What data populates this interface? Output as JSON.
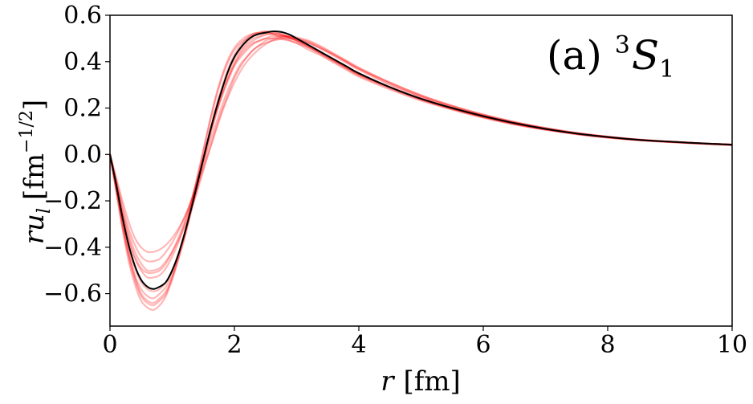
{
  "chart_data": {
    "type": "line",
    "title": "",
    "annotation": {
      "prefix": "(a) ",
      "sup": "3",
      "base": "S",
      "sub": "1"
    },
    "xlabel": {
      "var": "r",
      "unit": "[fm]"
    },
    "ylabel": {
      "var": "r",
      "var2": "u",
      "sub": "l",
      "unit_open": "[fm",
      "unit_sup": "−1/2",
      "unit_close": "]"
    },
    "xlim": [
      0,
      10
    ],
    "ylim": [
      -0.74,
      0.6
    ],
    "xticks": [
      0,
      2,
      4,
      6,
      8,
      10
    ],
    "xtick_labels": [
      "0",
      "2",
      "4",
      "6",
      "8",
      "10"
    ],
    "yticks": [
      -0.6,
      -0.4,
      -0.2,
      0.0,
      0.2,
      0.4,
      0.6
    ],
    "ytick_labels": [
      "−0.6",
      "−0.4",
      "−0.2",
      "0.0",
      "0.2",
      "0.4",
      "0.6"
    ],
    "grid": false,
    "legend": "none",
    "colors": {
      "central": "#000000",
      "band": "#ff0000"
    },
    "series": [
      {
        "role": "central",
        "x": [
          0,
          0.1,
          0.2,
          0.3,
          0.4,
          0.5,
          0.6,
          0.7,
          0.8,
          0.9,
          1.0,
          1.1,
          1.2,
          1.3,
          1.4,
          1.5,
          1.6,
          1.7,
          1.8,
          1.9,
          2.0,
          2.1,
          2.2,
          2.3,
          2.4,
          2.5,
          2.6,
          2.7,
          2.8,
          2.9,
          3.0,
          3.2,
          3.4,
          3.6,
          3.8,
          4.0,
          4.5,
          5.0,
          5.5,
          6.0,
          6.5,
          7.0,
          7.5,
          8.0,
          8.5,
          9.0,
          9.5,
          10.0
        ],
        "y": [
          0.0,
          -0.13,
          -0.27,
          -0.39,
          -0.48,
          -0.54,
          -0.57,
          -0.58,
          -0.57,
          -0.55,
          -0.5,
          -0.43,
          -0.34,
          -0.24,
          -0.13,
          -0.02,
          0.09,
          0.19,
          0.28,
          0.36,
          0.42,
          0.46,
          0.49,
          0.51,
          0.52,
          0.525,
          0.53,
          0.53,
          0.525,
          0.515,
          0.5,
          0.47,
          0.44,
          0.41,
          0.38,
          0.35,
          0.29,
          0.24,
          0.2,
          0.165,
          0.135,
          0.11,
          0.09,
          0.075,
          0.063,
          0.055,
          0.048,
          0.042
        ]
      },
      {
        "role": "band",
        "x": [
          0,
          0.1,
          0.2,
          0.3,
          0.4,
          0.5,
          0.6,
          0.7,
          0.8,
          0.9,
          1.0,
          1.1,
          1.2,
          1.3,
          1.4,
          1.5,
          1.6,
          1.7,
          1.8,
          1.9,
          2.0,
          2.1,
          2.2,
          2.3,
          2.4,
          2.5,
          2.6,
          2.7,
          2.8,
          2.9,
          3.0,
          3.2,
          3.4,
          3.6,
          3.8,
          4.0,
          4.5,
          5.0,
          5.5,
          6.0,
          6.5,
          7.0,
          7.5,
          8.0,
          8.5,
          9.0,
          9.5,
          10.0
        ],
        "y": [
          0.0,
          -0.16,
          -0.32,
          -0.46,
          -0.56,
          -0.63,
          -0.66,
          -0.67,
          -0.65,
          -0.61,
          -0.54,
          -0.45,
          -0.35,
          -0.23,
          -0.11,
          0.01,
          0.13,
          0.24,
          0.33,
          0.4,
          0.45,
          0.48,
          0.5,
          0.52,
          0.525,
          0.53,
          0.525,
          0.52,
          0.51,
          0.5,
          0.49,
          0.46,
          0.43,
          0.4,
          0.37,
          0.34,
          0.285,
          0.235,
          0.195,
          0.16,
          0.13,
          0.107,
          0.088,
          0.073,
          0.062,
          0.054,
          0.047,
          0.041
        ]
      },
      {
        "role": "band",
        "x": [
          0,
          0.1,
          0.2,
          0.3,
          0.4,
          0.5,
          0.6,
          0.7,
          0.8,
          0.9,
          1.0,
          1.1,
          1.2,
          1.3,
          1.4,
          1.5,
          1.6,
          1.7,
          1.8,
          1.9,
          2.0,
          2.1,
          2.2,
          2.3,
          2.4,
          2.5,
          2.6,
          2.7,
          2.8,
          2.9,
          3.0,
          3.2,
          3.4,
          3.6,
          3.8,
          4.0,
          4.5,
          5.0,
          5.5,
          6.0,
          6.5,
          7.0,
          7.5,
          8.0,
          8.5,
          9.0,
          9.5,
          10.0
        ],
        "y": [
          0.0,
          -0.15,
          -0.3,
          -0.43,
          -0.53,
          -0.6,
          -0.63,
          -0.64,
          -0.62,
          -0.59,
          -0.53,
          -0.45,
          -0.36,
          -0.25,
          -0.14,
          -0.02,
          0.09,
          0.19,
          0.28,
          0.35,
          0.41,
          0.45,
          0.48,
          0.5,
          0.51,
          0.52,
          0.52,
          0.515,
          0.51,
          0.5,
          0.49,
          0.465,
          0.435,
          0.405,
          0.375,
          0.345,
          0.29,
          0.24,
          0.198,
          0.163,
          0.133,
          0.109,
          0.09,
          0.075,
          0.063,
          0.055,
          0.048,
          0.042
        ]
      },
      {
        "role": "band",
        "x": [
          0,
          0.1,
          0.2,
          0.3,
          0.4,
          0.5,
          0.6,
          0.7,
          0.8,
          0.9,
          1.0,
          1.1,
          1.2,
          1.3,
          1.4,
          1.5,
          1.6,
          1.7,
          1.8,
          1.9,
          2.0,
          2.1,
          2.2,
          2.3,
          2.4,
          2.5,
          2.6,
          2.7,
          2.8,
          2.9,
          3.0,
          3.2,
          3.4,
          3.6,
          3.8,
          4.0,
          4.5,
          5.0,
          5.5,
          6.0,
          6.5,
          7.0,
          7.5,
          8.0,
          8.5,
          9.0,
          9.5,
          10.0
        ],
        "y": [
          0.0,
          -0.12,
          -0.24,
          -0.34,
          -0.42,
          -0.47,
          -0.5,
          -0.5,
          -0.49,
          -0.46,
          -0.42,
          -0.37,
          -0.31,
          -0.24,
          -0.16,
          -0.07,
          0.02,
          0.11,
          0.19,
          0.26,
          0.33,
          0.38,
          0.42,
          0.45,
          0.47,
          0.49,
          0.5,
          0.505,
          0.51,
          0.51,
          0.505,
          0.49,
          0.465,
          0.435,
          0.405,
          0.375,
          0.31,
          0.255,
          0.21,
          0.172,
          0.14,
          0.114,
          0.093,
          0.077,
          0.064,
          0.055,
          0.048,
          0.042
        ]
      },
      {
        "role": "band",
        "x": [
          0,
          0.1,
          0.2,
          0.3,
          0.4,
          0.5,
          0.6,
          0.7,
          0.8,
          0.9,
          1.0,
          1.1,
          1.2,
          1.3,
          1.4,
          1.5,
          1.6,
          1.7,
          1.8,
          1.9,
          2.0,
          2.1,
          2.2,
          2.3,
          2.4,
          2.5,
          2.6,
          2.7,
          2.8,
          2.9,
          3.0,
          3.2,
          3.4,
          3.6,
          3.8,
          4.0,
          4.5,
          5.0,
          5.5,
          6.0,
          6.5,
          7.0,
          7.5,
          8.0,
          8.5,
          9.0,
          9.5,
          10.0
        ],
        "y": [
          0.0,
          -0.1,
          -0.2,
          -0.29,
          -0.36,
          -0.4,
          -0.42,
          -0.42,
          -0.41,
          -0.39,
          -0.36,
          -0.32,
          -0.27,
          -0.21,
          -0.14,
          -0.06,
          0.02,
          0.1,
          0.18,
          0.25,
          0.31,
          0.36,
          0.4,
          0.43,
          0.455,
          0.475,
          0.49,
          0.5,
          0.505,
          0.505,
          0.5,
          0.485,
          0.46,
          0.43,
          0.4,
          0.37,
          0.305,
          0.25,
          0.205,
          0.168,
          0.137,
          0.112,
          0.091,
          0.076,
          0.064,
          0.055,
          0.048,
          0.042
        ]
      },
      {
        "role": "band",
        "x": [
          0,
          0.1,
          0.2,
          0.3,
          0.4,
          0.5,
          0.6,
          0.7,
          0.8,
          0.9,
          1.0,
          1.1,
          1.2,
          1.3,
          1.4,
          1.5,
          1.6,
          1.7,
          1.8,
          1.9,
          2.0,
          2.1,
          2.2,
          2.3,
          2.4,
          2.5,
          2.6,
          2.7,
          2.8,
          2.9,
          3.0,
          3.2,
          3.4,
          3.6,
          3.8,
          4.0,
          4.5,
          5.0,
          5.5,
          6.0,
          6.5,
          7.0,
          7.5,
          8.0,
          8.5,
          9.0,
          9.5,
          10.0
        ],
        "y": [
          0.0,
          -0.14,
          -0.28,
          -0.4,
          -0.49,
          -0.55,
          -0.58,
          -0.59,
          -0.58,
          -0.55,
          -0.5,
          -0.43,
          -0.35,
          -0.25,
          -0.15,
          -0.04,
          0.07,
          0.17,
          0.26,
          0.33,
          0.39,
          0.44,
          0.47,
          0.49,
          0.505,
          0.515,
          0.52,
          0.52,
          0.515,
          0.505,
          0.495,
          0.47,
          0.44,
          0.41,
          0.38,
          0.35,
          0.29,
          0.24,
          0.2,
          0.165,
          0.135,
          0.11,
          0.09,
          0.075,
          0.063,
          0.055,
          0.048,
          0.042
        ]
      },
      {
        "role": "band",
        "x": [
          0,
          0.1,
          0.2,
          0.3,
          0.4,
          0.5,
          0.6,
          0.7,
          0.8,
          0.9,
          1.0,
          1.1,
          1.2,
          1.3,
          1.4,
          1.5,
          1.6,
          1.7,
          1.8,
          1.9,
          2.0,
          2.1,
          2.2,
          2.3,
          2.4,
          2.5,
          2.6,
          2.7,
          2.8,
          2.9,
          3.0,
          3.2,
          3.4,
          3.6,
          3.8,
          4.0,
          4.5,
          5.0,
          5.5,
          6.0,
          6.5,
          7.0,
          7.5,
          8.0,
          8.5,
          9.0,
          9.5,
          10.0
        ],
        "y": [
          0.0,
          -0.13,
          -0.26,
          -0.37,
          -0.45,
          -0.5,
          -0.53,
          -0.53,
          -0.52,
          -0.49,
          -0.44,
          -0.38,
          -0.3,
          -0.21,
          -0.11,
          -0.01,
          0.09,
          0.18,
          0.26,
          0.33,
          0.39,
          0.43,
          0.46,
          0.48,
          0.49,
          0.5,
          0.5,
          0.5,
          0.495,
          0.49,
          0.48,
          0.46,
          0.435,
          0.405,
          0.375,
          0.345,
          0.29,
          0.24,
          0.198,
          0.163,
          0.133,
          0.109,
          0.089,
          0.074,
          0.062,
          0.054,
          0.047,
          0.041
        ]
      },
      {
        "role": "band",
        "x": [
          0,
          0.1,
          0.2,
          0.3,
          0.4,
          0.5,
          0.6,
          0.7,
          0.8,
          0.9,
          1.0,
          1.1,
          1.2,
          1.3,
          1.4,
          1.5,
          1.6,
          1.7,
          1.8,
          1.9,
          2.0,
          2.1,
          2.2,
          2.3,
          2.4,
          2.5,
          2.6,
          2.7,
          2.8,
          2.9,
          3.0,
          3.2,
          3.4,
          3.6,
          3.8,
          4.0,
          4.5,
          5.0,
          5.5,
          6.0,
          6.5,
          7.0,
          7.5,
          8.0,
          8.5,
          9.0,
          9.5,
          10.0
        ],
        "y": [
          0.0,
          -0.11,
          -0.22,
          -0.32,
          -0.39,
          -0.44,
          -0.46,
          -0.46,
          -0.45,
          -0.42,
          -0.38,
          -0.33,
          -0.27,
          -0.2,
          -0.12,
          -0.04,
          0.05,
          0.13,
          0.21,
          0.28,
          0.34,
          0.39,
          0.42,
          0.45,
          0.47,
          0.48,
          0.49,
          0.495,
          0.5,
          0.5,
          0.495,
          0.48,
          0.455,
          0.43,
          0.4,
          0.37,
          0.31,
          0.255,
          0.21,
          0.172,
          0.14,
          0.114,
          0.093,
          0.077,
          0.064,
          0.055,
          0.048,
          0.042
        ]
      },
      {
        "role": "band",
        "x": [
          0,
          0.1,
          0.2,
          0.3,
          0.4,
          0.5,
          0.6,
          0.7,
          0.8,
          0.9,
          1.0,
          1.1,
          1.2,
          1.3,
          1.4,
          1.5,
          1.6,
          1.7,
          1.8,
          1.9,
          2.0,
          2.1,
          2.2,
          2.3,
          2.4,
          2.5,
          2.6,
          2.7,
          2.8,
          2.9,
          3.0,
          3.2,
          3.4,
          3.6,
          3.8,
          4.0,
          4.5,
          5.0,
          5.5,
          6.0,
          6.5,
          7.0,
          7.5,
          8.0,
          8.5,
          9.0,
          9.5,
          10.0
        ],
        "y": [
          0.0,
          -0.15,
          -0.31,
          -0.44,
          -0.54,
          -0.61,
          -0.64,
          -0.65,
          -0.63,
          -0.6,
          -0.53,
          -0.44,
          -0.34,
          -0.22,
          -0.1,
          0.02,
          0.14,
          0.25,
          0.34,
          0.41,
          0.46,
          0.49,
          0.51,
          0.52,
          0.525,
          0.525,
          0.52,
          0.51,
          0.5,
          0.49,
          0.48,
          0.45,
          0.425,
          0.395,
          0.365,
          0.335,
          0.28,
          0.232,
          0.193,
          0.158,
          0.129,
          0.106,
          0.087,
          0.072,
          0.061,
          0.053,
          0.046,
          0.04
        ]
      },
      {
        "role": "band",
        "x": [
          0,
          0.1,
          0.2,
          0.3,
          0.4,
          0.5,
          0.6,
          0.7,
          0.8,
          0.9,
          1.0,
          1.1,
          1.2,
          1.3,
          1.4,
          1.5,
          1.6,
          1.7,
          1.8,
          1.9,
          2.0,
          2.1,
          2.2,
          2.3,
          2.4,
          2.5,
          2.6,
          2.7,
          2.8,
          2.9,
          3.0,
          3.2,
          3.4,
          3.6,
          3.8,
          4.0,
          4.5,
          5.0,
          5.5,
          6.0,
          6.5,
          7.0,
          7.5,
          8.0,
          8.5,
          9.0,
          9.5,
          10.0
        ],
        "y": [
          0.0,
          -0.12,
          -0.25,
          -0.36,
          -0.44,
          -0.49,
          -0.51,
          -0.51,
          -0.5,
          -0.47,
          -0.42,
          -0.36,
          -0.29,
          -0.21,
          -0.12,
          -0.02,
          0.08,
          0.17,
          0.25,
          0.32,
          0.38,
          0.42,
          0.45,
          0.475,
          0.49,
          0.5,
          0.51,
          0.51,
          0.51,
          0.505,
          0.5,
          0.48,
          0.455,
          0.425,
          0.395,
          0.365,
          0.3,
          0.248,
          0.205,
          0.168,
          0.137,
          0.112,
          0.091,
          0.076,
          0.064,
          0.055,
          0.048,
          0.042
        ]
      },
      {
        "role": "band",
        "x": [
          0,
          0.1,
          0.2,
          0.3,
          0.4,
          0.5,
          0.6,
          0.7,
          0.8,
          0.9,
          1.0,
          1.1,
          1.2,
          1.3,
          1.4,
          1.5,
          1.6,
          1.7,
          1.8,
          1.9,
          2.0,
          2.1,
          2.2,
          2.3,
          2.4,
          2.5,
          2.6,
          2.7,
          2.8,
          2.9,
          3.0,
          3.2,
          3.4,
          3.6,
          3.8,
          4.0,
          4.5,
          5.0,
          5.5,
          6.0,
          6.5,
          7.0,
          7.5,
          8.0,
          8.5,
          9.0,
          9.5,
          10.0
        ],
        "y": [
          0.0,
          -0.14,
          -0.29,
          -0.42,
          -0.52,
          -0.58,
          -0.61,
          -0.62,
          -0.6,
          -0.57,
          -0.51,
          -0.43,
          -0.34,
          -0.24,
          -0.13,
          -0.02,
          0.09,
          0.2,
          0.29,
          0.37,
          0.43,
          0.47,
          0.5,
          0.515,
          0.525,
          0.53,
          0.53,
          0.525,
          0.515,
          0.505,
          0.49,
          0.465,
          0.435,
          0.405,
          0.375,
          0.345,
          0.288,
          0.238,
          0.197,
          0.162,
          0.132,
          0.108,
          0.088,
          0.073,
          0.062,
          0.054,
          0.047,
          0.041
        ]
      }
    ]
  }
}
